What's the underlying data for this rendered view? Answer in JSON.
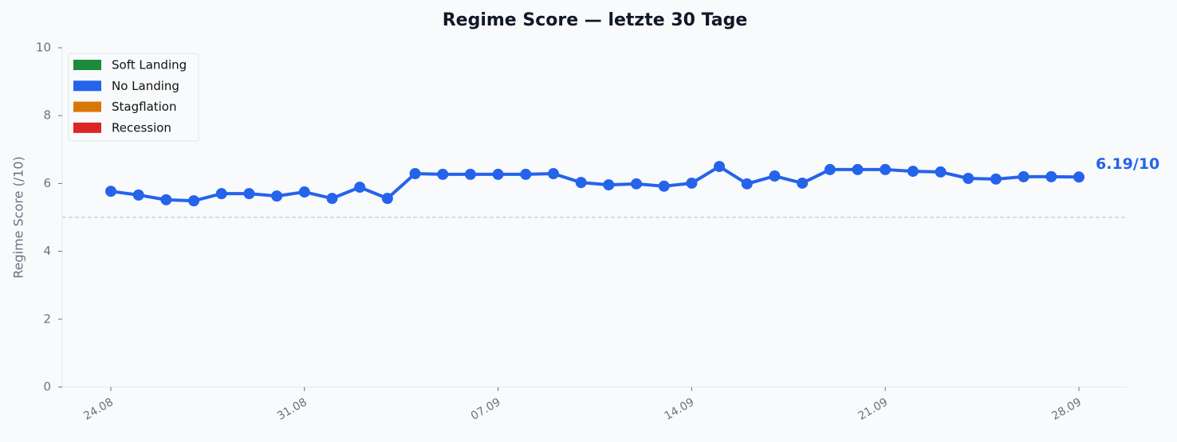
{
  "chart_data": {
    "type": "line",
    "title": "Regime Score — letzte 30 Tage",
    "ylabel": "Regime Score (/10)",
    "categories": [
      "24.08",
      null,
      null,
      null,
      null,
      null,
      null,
      "31.08",
      null,
      null,
      null,
      null,
      null,
      null,
      "07.09",
      null,
      null,
      null,
      null,
      null,
      null,
      "14.09",
      null,
      null,
      null,
      null,
      null,
      null,
      "21.09",
      null,
      null,
      null,
      null,
      null,
      null,
      "28.09"
    ],
    "series": [
      {
        "color": "#2563eb",
        "values": [
          5.77,
          5.66,
          5.52,
          5.49,
          5.7,
          5.7,
          5.63,
          5.75,
          5.56,
          5.89,
          5.56,
          6.29,
          6.27,
          6.27,
          6.27,
          6.27,
          6.29,
          6.03,
          5.96,
          5.99,
          5.92,
          6.01,
          6.5,
          5.99,
          6.22,
          6.01,
          6.41,
          6.41,
          6.41,
          6.36,
          6.34,
          6.15,
          6.13,
          6.2,
          6.2,
          6.19
        ]
      }
    ],
    "last_label": "6.19/10",
    "reference_line": 5,
    "ylim": [
      0,
      10
    ],
    "yticks": [
      0,
      2,
      4,
      6,
      8,
      10
    ],
    "legend_position": "upper left",
    "legend": [
      {
        "name": "Soft Landing",
        "color": "#1e8a3e"
      },
      {
        "name": "No Landing",
        "color": "#2563eb"
      },
      {
        "name": "Stagflation",
        "color": "#d97706"
      },
      {
        "name": "Recession",
        "color": "#dc2626"
      }
    ]
  }
}
